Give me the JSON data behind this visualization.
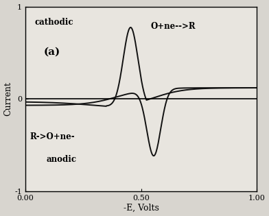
{
  "title": "",
  "xlabel": "-E, Volts",
  "ylabel": "Current",
  "xlim": [
    0.0,
    1.0
  ],
  "ylim": [
    -1.0,
    1.0
  ],
  "xticks": [
    0.0,
    0.5,
    1.0
  ],
  "yticks": [
    -1,
    0,
    1
  ],
  "xtick_labels": [
    "0.00",
    "0.50",
    "1.00"
  ],
  "ytick_labels": [
    "-1",
    "0",
    "1"
  ],
  "label_cathodic": "cathodic",
  "label_a": "(a)",
  "label_reaction_top": "O+ne-->R",
  "label_reaction_bot1": "R->O+ne-",
  "label_anodic": "anodic",
  "background_color": "#d8d5cf",
  "plot_bg_color": "#e8e5df",
  "curve_color": "#111111",
  "line_color": "#000000"
}
